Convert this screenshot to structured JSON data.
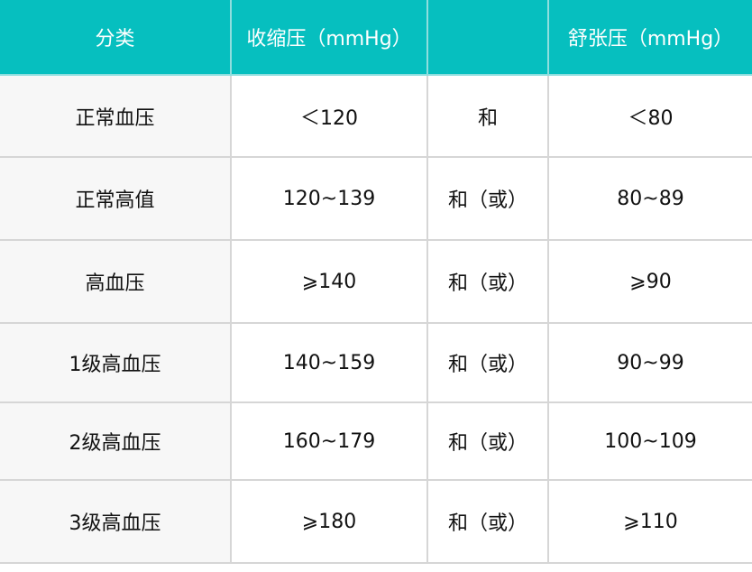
{
  "table": {
    "headers": [
      "分类",
      "收缩压（mmHg）",
      "",
      "舒张压（mmHg）"
    ],
    "rows": [
      [
        "正常血压",
        "＜120",
        "和",
        "＜80"
      ],
      [
        "正常高值",
        "120~139",
        "和（或）",
        "80~89"
      ],
      [
        "高血压",
        "⩾140",
        "和（或）",
        "⩾90"
      ],
      [
        "1级高血压",
        "140~159",
        "和（或）",
        "90~99"
      ],
      [
        "2级高血压",
        "160~179",
        "和（或）",
        "100~109"
      ],
      [
        "3级高血压",
        "⩾180",
        "和（或）",
        "⩾110"
      ]
    ],
    "colors": {
      "header_bg": "#06bfbf",
      "header_text": "#ffffff",
      "first_col_bg": "#f7f7f7"
    }
  }
}
